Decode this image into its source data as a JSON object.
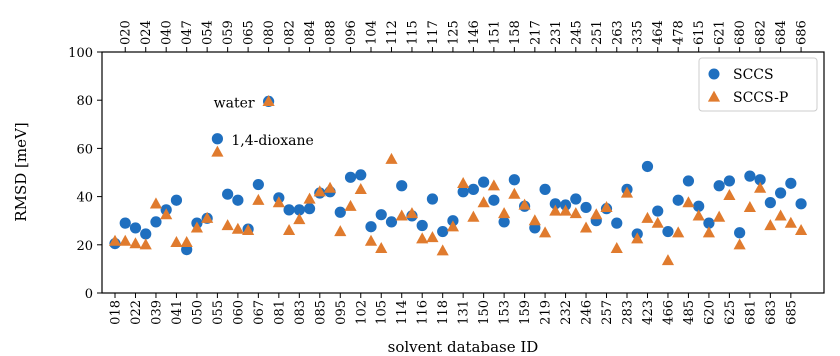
{
  "chart_data": {
    "type": "scatter",
    "xlabel": "solvent database ID",
    "ylabel": "RMSD [meV]",
    "ylim": [
      0,
      100
    ],
    "yticks": [
      0,
      20,
      40,
      60,
      80,
      100
    ],
    "grid": false,
    "legend_position": "top-right",
    "bottom_tick_labels": [
      "018",
      "022",
      "039",
      "041",
      "050",
      "055",
      "060",
      "067",
      "081",
      "083",
      "085",
      "095",
      "102",
      "105",
      "114",
      "116",
      "118",
      "131",
      "150",
      "153",
      "159",
      "219",
      "232",
      "246",
      "257",
      "283",
      "423",
      "466",
      "485",
      "620",
      "625",
      "681",
      "683",
      "685"
    ],
    "top_tick_labels": [
      "020",
      "024",
      "040",
      "047",
      "054",
      "059",
      "065",
      "080",
      "082",
      "084",
      "088",
      "096",
      "104",
      "112",
      "115",
      "117",
      "125",
      "146",
      "151",
      "158",
      "217",
      "231",
      "245",
      "251",
      "263",
      "335",
      "464",
      "478",
      "615",
      "621",
      "680",
      "682",
      "684",
      "686"
    ],
    "annotations": [
      {
        "text": "water",
        "x_index": 15,
        "y": 79
      },
      {
        "text": "1,4-dioxane",
        "x_index": 10,
        "y": 64
      }
    ],
    "series": [
      {
        "name": "SCCS",
        "color": "#1f6fbf",
        "marker": "circle",
        "values": [
          20.5,
          29,
          27,
          24.5,
          29.5,
          34.5,
          38.5,
          18,
          29,
          31,
          64,
          41,
          38.5,
          26.5,
          45,
          79.5,
          39.5,
          34.5,
          34.5,
          35,
          41.5,
          42,
          33.5,
          48,
          49,
          27.5,
          32.5,
          29.5,
          44.5,
          32,
          28,
          39,
          25.5,
          30,
          42,
          43,
          46,
          38.5,
          29.5,
          47,
          36,
          27,
          43,
          37,
          36.5,
          39,
          35.5,
          30,
          35,
          29,
          43,
          24.5,
          52.5,
          34,
          25.5,
          38.5,
          46.5,
          36,
          29,
          44.5,
          46.5,
          25,
          48.5,
          47,
          37.5,
          41.5,
          45.5,
          37
        ]
      },
      {
        "name": "SCCS-P",
        "color": "#e07b2e",
        "marker": "triangle",
        "values": [
          21.5,
          21.5,
          20.5,
          20,
          37,
          32.5,
          21,
          21,
          27,
          31,
          58.5,
          28,
          26.5,
          26,
          38.5,
          79.5,
          37.5,
          26,
          30.5,
          39,
          42,
          43.5,
          25.5,
          36,
          43,
          21.5,
          18.5,
          55.5,
          32,
          33,
          22.5,
          23,
          17.5,
          27.5,
          45.5,
          31.5,
          37.5,
          44.5,
          33,
          41,
          36.5,
          30,
          25,
          34,
          34,
          33,
          27,
          32.5,
          35.5,
          18.5,
          41.5,
          22.5,
          31,
          29,
          13.5,
          25,
          37.5,
          32,
          25,
          31.5,
          40.5,
          20,
          35.5,
          43.5,
          28,
          32,
          29,
          26
        ]
      }
    ]
  }
}
